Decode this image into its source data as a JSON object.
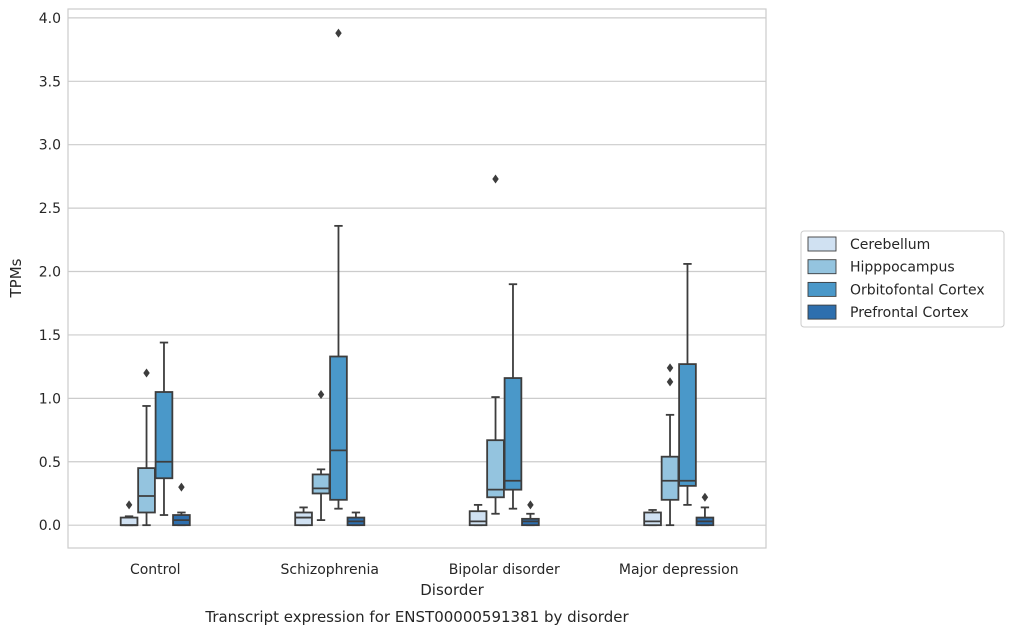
{
  "chart_data": {
    "type": "boxplot",
    "caption": "Transcript expression for ENST00000591381 by disorder",
    "xlabel": "Disorder",
    "ylabel": "TPMs",
    "ylim": [
      -0.18,
      4.07
    ],
    "yticks": [
      "0.0",
      "0.5",
      "1.0",
      "1.5",
      "2.0",
      "2.5",
      "3.0",
      "3.5",
      "4.0"
    ],
    "grid": true,
    "legend_position": "right",
    "categories": [
      "Control",
      "Schizophrenia",
      "Bipolar disorder",
      "Major depression"
    ],
    "series": [
      {
        "name": "Cerebellum",
        "color": "#d0e1f2",
        "boxes": [
          {
            "whislo": 0.0,
            "q1": 0.0,
            "med": 0.0,
            "q3": 0.06,
            "whishi": 0.07,
            "fliers": [
              0.16
            ]
          },
          {
            "whislo": 0.0,
            "q1": 0.0,
            "med": 0.06,
            "q3": 0.1,
            "whishi": 0.14,
            "fliers": []
          },
          {
            "whislo": 0.0,
            "q1": 0.0,
            "med": 0.03,
            "q3": 0.11,
            "whishi": 0.16,
            "fliers": []
          },
          {
            "whislo": 0.0,
            "q1": 0.0,
            "med": 0.03,
            "q3": 0.1,
            "whishi": 0.12,
            "fliers": []
          }
        ]
      },
      {
        "name": "Hipppocampus",
        "color": "#94c4df",
        "boxes": [
          {
            "whislo": 0.0,
            "q1": 0.1,
            "med": 0.23,
            "q3": 0.45,
            "whishi": 0.94,
            "fliers": [
              1.2
            ]
          },
          {
            "whislo": 0.04,
            "q1": 0.25,
            "med": 0.29,
            "q3": 0.4,
            "whishi": 0.44,
            "fliers": [
              1.03
            ]
          },
          {
            "whislo": 0.09,
            "q1": 0.22,
            "med": 0.28,
            "q3": 0.67,
            "whishi": 1.01,
            "fliers": [
              2.73
            ]
          },
          {
            "whislo": 0.0,
            "q1": 0.2,
            "med": 0.35,
            "q3": 0.54,
            "whishi": 0.87,
            "fliers": [
              1.13,
              1.24
            ]
          }
        ]
      },
      {
        "name": "Orbitofontal Cortex",
        "color": "#4a98c9",
        "boxes": [
          {
            "whislo": 0.08,
            "q1": 0.37,
            "med": 0.5,
            "q3": 1.05,
            "whishi": 1.44,
            "fliers": []
          },
          {
            "whislo": 0.13,
            "q1": 0.2,
            "med": 0.59,
            "q3": 1.33,
            "whishi": 2.36,
            "fliers": [
              3.88
            ]
          },
          {
            "whislo": 0.13,
            "q1": 0.28,
            "med": 0.35,
            "q3": 1.16,
            "whishi": 1.9,
            "fliers": []
          },
          {
            "whislo": 0.16,
            "q1": 0.31,
            "med": 0.35,
            "q3": 1.27,
            "whishi": 2.06,
            "fliers": []
          }
        ]
      },
      {
        "name": "Prefrontal Cortex",
        "color": "#2e6fae",
        "boxes": [
          {
            "whislo": 0.0,
            "q1": 0.0,
            "med": 0.04,
            "q3": 0.08,
            "whishi": 0.1,
            "fliers": [
              0.3
            ]
          },
          {
            "whislo": 0.0,
            "q1": 0.0,
            "med": 0.03,
            "q3": 0.06,
            "whishi": 0.1,
            "fliers": []
          },
          {
            "whislo": 0.0,
            "q1": 0.0,
            "med": 0.03,
            "q3": 0.05,
            "whishi": 0.09,
            "fliers": [
              0.16
            ]
          },
          {
            "whislo": 0.0,
            "q1": 0.0,
            "med": 0.03,
            "q3": 0.06,
            "whishi": 0.14,
            "fliers": [
              0.22
            ]
          }
        ]
      }
    ]
  }
}
